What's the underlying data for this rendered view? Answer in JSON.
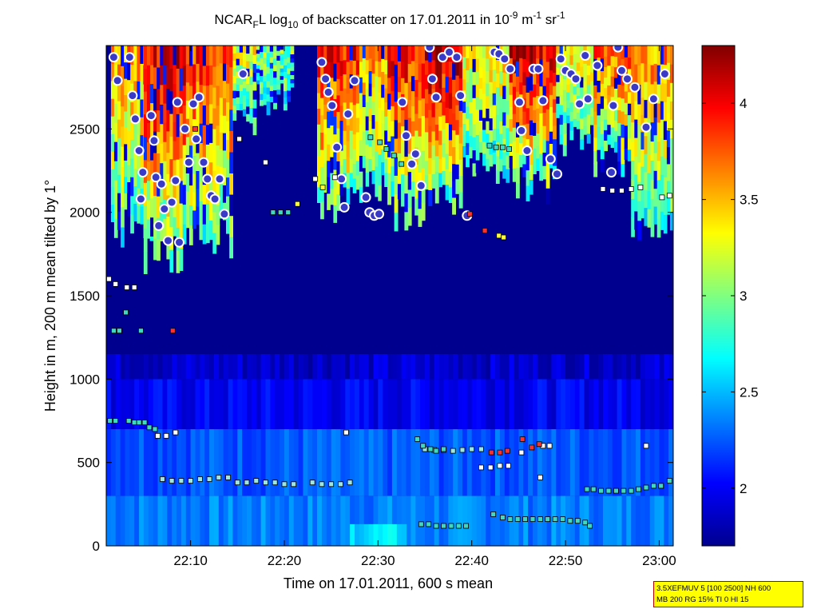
{
  "chart_data": {
    "type": "heatmap",
    "title_parts": {
      "prefix": "NCAR",
      "prefix_sub": "F",
      "middle": "L log",
      "log_sub": "10",
      "rest": " of backscatter on 17.01.2011 in 10",
      "exp1": "-9",
      "unit_m": " m",
      "exp2": "-1",
      "unit_sr": " sr",
      "exp3": "-1"
    },
    "xlabel": "Time on 17.01.2011, 600 s mean",
    "ylabel": "Height in m, 200 m mean tilted by 1°",
    "x_ticks": [
      "22:10",
      "22:20",
      "22:30",
      "22:40",
      "22:50",
      "23:00"
    ],
    "x_tick_minutes": [
      10,
      20,
      30,
      40,
      50,
      60
    ],
    "xlim_minutes_after_2200": [
      1,
      61.5
    ],
    "y_ticks": [
      "0",
      "500",
      "1000",
      "1500",
      "2000",
      "2500"
    ],
    "y_tick_values": [
      0,
      500,
      1000,
      1500,
      2000,
      2500
    ],
    "ylim": [
      0,
      3000
    ],
    "colorbar": {
      "ticks": [
        "2",
        "2.5",
        "3",
        "3.5",
        "4"
      ],
      "tick_values": [
        2,
        2.5,
        3,
        3.5,
        4
      ],
      "range": [
        1.7,
        4.3
      ],
      "colormap": "jet"
    },
    "background_value": 1.7,
    "layers": [
      {
        "description": "surface aerosol layer",
        "h0": 0,
        "h1": 300,
        "value": 2.35,
        "t0": 1,
        "t1": 61.5
      },
      {
        "description": "boundary layer",
        "h0": 300,
        "h1": 700,
        "value": 2.25,
        "t0": 1,
        "t1": 61.5
      },
      {
        "description": "upper boundary layer",
        "h0": 700,
        "h1": 1000,
        "value": 2.0,
        "t0": 1,
        "t1": 61.5
      },
      {
        "description": "residual layer",
        "h0": 1000,
        "h1": 1150,
        "value": 1.9,
        "t0": 1,
        "t1": 61.5
      },
      {
        "description": "near-surface enhancement",
        "h0": 0,
        "h1": 130,
        "value": 2.6,
        "t0": 27,
        "t1": 33
      }
    ],
    "clouds": [
      {
        "t0": 1.5,
        "t1": 6.0,
        "base": 1850,
        "top": 3000,
        "core": 3.6
      },
      {
        "t0": 5.0,
        "t1": 9.5,
        "base": 1700,
        "top": 3000,
        "core": 4.1
      },
      {
        "t0": 9.5,
        "t1": 14.5,
        "base": 1800,
        "top": 3000,
        "core": 3.9
      },
      {
        "t0": 14.5,
        "t1": 17.0,
        "base": 2500,
        "top": 3000,
        "core": 3.3
      },
      {
        "t0": 17.0,
        "t1": 21.0,
        "base": 2650,
        "top": 3000,
        "core": 3.0
      },
      {
        "t0": 23.5,
        "t1": 28.0,
        "base": 2000,
        "top": 3000,
        "core": 4.0
      },
      {
        "t0": 28.0,
        "t1": 31.0,
        "base": 2100,
        "top": 3000,
        "core": 3.6
      },
      {
        "t0": 31.0,
        "t1": 35.0,
        "base": 1950,
        "top": 3000,
        "core": 4.0
      },
      {
        "t0": 35.0,
        "t1": 39.0,
        "base": 2000,
        "top": 3000,
        "core": 4.2
      },
      {
        "t0": 39.0,
        "t1": 44.0,
        "base": 2200,
        "top": 3000,
        "core": 3.4
      },
      {
        "t0": 44.0,
        "t1": 49.0,
        "base": 2100,
        "top": 3000,
        "core": 4.1
      },
      {
        "t0": 49.0,
        "t1": 53.0,
        "base": 2400,
        "top": 3000,
        "core": 3.4
      },
      {
        "t0": 53.0,
        "t1": 57.0,
        "base": 2250,
        "top": 3000,
        "core": 3.8
      },
      {
        "t0": 57.0,
        "t1": 61.5,
        "base": 1900,
        "top": 3000,
        "core": 3.6
      }
    ],
    "marker_series": [
      {
        "marker": "circle",
        "color": "#3a3ac8",
        "edge": "#ffffff",
        "points": [
          [
            1.8,
            2930
          ],
          [
            2.2,
            2790
          ],
          [
            3.5,
            2930
          ],
          [
            3.8,
            2700
          ],
          [
            4.1,
            2560
          ],
          [
            4.5,
            2370
          ],
          [
            4.9,
            2240
          ],
          [
            4.7,
            2080
          ],
          [
            5.8,
            2580
          ],
          [
            6.1,
            2430
          ],
          [
            6.3,
            2210
          ],
          [
            6.9,
            2170
          ],
          [
            7.2,
            2020
          ],
          [
            6.6,
            1920
          ],
          [
            7.6,
            1830
          ],
          [
            8.0,
            2060
          ],
          [
            8.4,
            2190
          ],
          [
            8.8,
            1820
          ],
          [
            8.6,
            2660
          ],
          [
            9.4,
            2500
          ],
          [
            9.8,
            2300
          ],
          [
            10.3,
            2650
          ],
          [
            10.6,
            2440
          ],
          [
            10.9,
            2690
          ],
          [
            11.4,
            2300
          ],
          [
            11.8,
            2200
          ],
          [
            12.2,
            2100
          ],
          [
            12.6,
            2080
          ],
          [
            13.1,
            2200
          ],
          [
            13.6,
            1990
          ],
          [
            15.6,
            2830
          ],
          [
            24.0,
            2900
          ],
          [
            24.4,
            2800
          ],
          [
            24.7,
            2720
          ],
          [
            25.1,
            2640
          ],
          [
            25.6,
            2390
          ],
          [
            26.1,
            2200
          ],
          [
            26.4,
            2030
          ],
          [
            26.8,
            2590
          ],
          [
            27.5,
            2790
          ],
          [
            28.7,
            2090
          ],
          [
            29.1,
            2000
          ],
          [
            29.6,
            1980
          ],
          [
            30.1,
            1990
          ],
          [
            32.6,
            2660
          ],
          [
            33.0,
            2460
          ],
          [
            33.6,
            2290
          ],
          [
            34.0,
            2350
          ],
          [
            34.6,
            2160
          ],
          [
            35.5,
            2990
          ],
          [
            35.8,
            2800
          ],
          [
            36.2,
            2690
          ],
          [
            36.9,
            2930
          ],
          [
            37.6,
            2960
          ],
          [
            38.4,
            2930
          ],
          [
            38.8,
            2700
          ],
          [
            39.5,
            1980
          ],
          [
            42.4,
            2960
          ],
          [
            42.9,
            2950
          ],
          [
            43.5,
            2920
          ],
          [
            44.1,
            2860
          ],
          [
            45.1,
            2660
          ],
          [
            45.3,
            2490
          ],
          [
            45.9,
            2370
          ],
          [
            46.6,
            2860
          ],
          [
            47.1,
            2860
          ],
          [
            47.6,
            2670
          ],
          [
            48.4,
            2320
          ],
          [
            49.1,
            2230
          ],
          [
            49.5,
            2920
          ],
          [
            50.0,
            2850
          ],
          [
            50.6,
            2830
          ],
          [
            51.1,
            2800
          ],
          [
            51.5,
            2650
          ],
          [
            52.1,
            2940
          ],
          [
            52.4,
            2680
          ],
          [
            53.4,
            2880
          ],
          [
            54.9,
            2240
          ],
          [
            55.1,
            2640
          ],
          [
            55.6,
            2990
          ],
          [
            56.0,
            2850
          ],
          [
            56.6,
            2800
          ],
          [
            57.4,
            2750
          ],
          [
            58.6,
            2510
          ],
          [
            59.4,
            2680
          ],
          [
            60.6,
            2830
          ]
        ]
      },
      {
        "marker": "square",
        "color": "#ffffff",
        "edge": "#000000",
        "points": [
          [
            1.3,
            1600
          ],
          [
            2.0,
            1570
          ],
          [
            3.2,
            1550
          ],
          [
            4.0,
            1550
          ],
          [
            6.5,
            660
          ],
          [
            7.4,
            660
          ],
          [
            8.4,
            680
          ],
          [
            15.2,
            2440
          ],
          [
            18.0,
            2300
          ],
          [
            26.6,
            680
          ],
          [
            23.3,
            2200
          ],
          [
            25.4,
            2210
          ],
          [
            41.0,
            470
          ],
          [
            42.0,
            470
          ],
          [
            43.0,
            480
          ],
          [
            43.9,
            480
          ],
          [
            47.3,
            410
          ],
          [
            45.3,
            560
          ],
          [
            47.6,
            600
          ],
          [
            48.3,
            600
          ],
          [
            58.6,
            600
          ],
          [
            54.0,
            2140
          ],
          [
            55.0,
            2130
          ],
          [
            56.0,
            2130
          ],
          [
            57.0,
            2140
          ],
          [
            58.0,
            2150
          ],
          [
            60.3,
            2090
          ],
          [
            61.1,
            2100
          ]
        ]
      },
      {
        "marker": "square",
        "color": "#40d8c0",
        "edge": "#000000",
        "points": [
          [
            1.4,
            750
          ],
          [
            2.0,
            750
          ],
          [
            1.8,
            1290
          ],
          [
            2.4,
            1290
          ],
          [
            3.1,
            1400
          ],
          [
            4.7,
            1290
          ],
          [
            3.4,
            750
          ],
          [
            4.0,
            740
          ],
          [
            4.5,
            740
          ],
          [
            5.1,
            740
          ],
          [
            5.6,
            710
          ],
          [
            6.2,
            700
          ],
          [
            18.8,
            2000
          ],
          [
            19.6,
            2000
          ],
          [
            20.4,
            2000
          ],
          [
            29.2,
            2450
          ],
          [
            30.2,
            2420
          ],
          [
            30.9,
            2380
          ],
          [
            31.7,
            2340
          ],
          [
            32.5,
            2290
          ],
          [
            34.2,
            640
          ],
          [
            34.8,
            600
          ],
          [
            35.6,
            580
          ],
          [
            36.2,
            570
          ],
          [
            37.0,
            580
          ],
          [
            41.9,
            2400
          ],
          [
            42.6,
            2390
          ],
          [
            43.3,
            2390
          ],
          [
            44.0,
            2380
          ],
          [
            42.3,
            190
          ],
          [
            43.3,
            170
          ],
          [
            44.1,
            160
          ],
          [
            44.9,
            160
          ],
          [
            45.7,
            160
          ],
          [
            46.5,
            160
          ],
          [
            47.3,
            160
          ],
          [
            48.1,
            160
          ],
          [
            48.9,
            160
          ],
          [
            49.7,
            160
          ],
          [
            50.5,
            150
          ],
          [
            51.3,
            150
          ],
          [
            52.1,
            140
          ],
          [
            52.6,
            120
          ],
          [
            34.6,
            130
          ],
          [
            35.4,
            130
          ],
          [
            36.2,
            120
          ],
          [
            37.0,
            120
          ],
          [
            37.8,
            120
          ],
          [
            38.6,
            120
          ],
          [
            39.4,
            120
          ],
          [
            52.3,
            340
          ],
          [
            53.0,
            340
          ],
          [
            53.8,
            330
          ],
          [
            54.6,
            330
          ],
          [
            55.4,
            330
          ],
          [
            56.2,
            330
          ],
          [
            57.0,
            330
          ],
          [
            57.8,
            340
          ],
          [
            58.6,
            350
          ],
          [
            59.4,
            360
          ],
          [
            60.2,
            360
          ],
          [
            61.1,
            390
          ]
        ]
      },
      {
        "marker": "square",
        "color": "#ff3030",
        "edge": "#000000",
        "points": [
          [
            8.1,
            1290
          ],
          [
            10.5,
            2500
          ],
          [
            39.8,
            1990
          ],
          [
            41.4,
            1890
          ],
          [
            42.1,
            560
          ],
          [
            43.0,
            560
          ],
          [
            43.8,
            570
          ],
          [
            45.4,
            640
          ],
          [
            46.4,
            590
          ],
          [
            47.2,
            610
          ]
        ]
      },
      {
        "marker": "square",
        "color": "#ffff40",
        "edge": "#000000",
        "points": [
          [
            42.9,
            1860
          ],
          [
            43.4,
            1850
          ],
          [
            21.4,
            2050
          ],
          [
            24.1,
            2150
          ]
        ]
      }
    ],
    "trace_series": [
      {
        "color": "#9de7e0",
        "points": [
          [
            7.0,
            400
          ],
          [
            8.0,
            390
          ],
          [
            9.0,
            390
          ],
          [
            10.0,
            390
          ],
          [
            11.0,
            400
          ],
          [
            12.0,
            400
          ],
          [
            13.0,
            410
          ],
          [
            14.0,
            410
          ],
          [
            15.0,
            380
          ],
          [
            16.0,
            380
          ],
          [
            17.0,
            390
          ],
          [
            18.0,
            380
          ],
          [
            19.0,
            380
          ],
          [
            20.0,
            370
          ],
          [
            21.0,
            370
          ],
          [
            23.0,
            380
          ],
          [
            24.0,
            370
          ],
          [
            25.0,
            370
          ],
          [
            26.0,
            370
          ],
          [
            27.0,
            380
          ]
        ]
      },
      {
        "color": "#9de7e0",
        "points": [
          [
            35.0,
            580
          ],
          [
            36.0,
            575
          ],
          [
            37.0,
            575
          ],
          [
            38.0,
            570
          ],
          [
            39.0,
            575
          ],
          [
            40.0,
            580
          ],
          [
            41.0,
            580
          ]
        ]
      }
    ]
  },
  "info_box": {
    "line1": "3.5XEFMUV 5 [100 2500] NH 600",
    "line2": "MB 200 RG 15% TI 0 HI 15"
  }
}
